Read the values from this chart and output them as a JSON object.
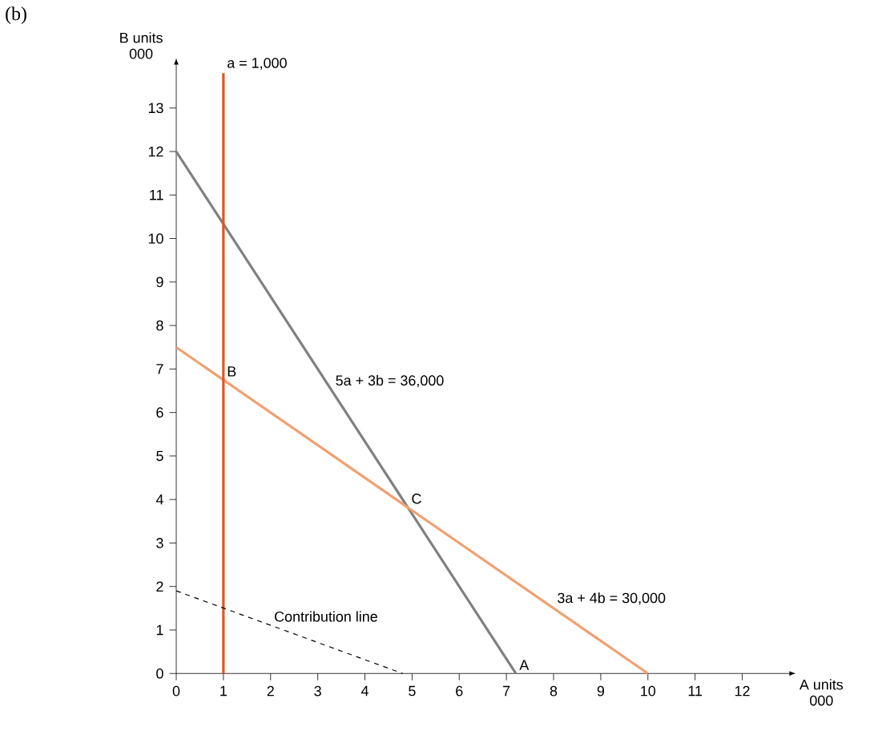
{
  "chart_data": {
    "type": "line",
    "title": "(b)",
    "xlabel": "A units 000",
    "ylabel": "B units 000",
    "xlim": [
      0,
      13
    ],
    "ylim": [
      0,
      14
    ],
    "xticks": [
      0,
      1,
      2,
      3,
      4,
      5,
      6,
      7,
      8,
      9,
      10,
      11,
      12
    ],
    "yticks": [
      0,
      1,
      2,
      3,
      4,
      5,
      6,
      7,
      8,
      9,
      10,
      11,
      12,
      13
    ],
    "grid": false,
    "series": [
      {
        "color": "#808080",
        "x": [
          0,
          7.2
        ],
        "values": [
          12,
          0
        ],
        "line_style": "solid"
      },
      {
        "color": "#f0a070",
        "x": [
          0,
          10
        ],
        "values": [
          7.5,
          0
        ],
        "line_style": "solid"
      },
      {
        "color": "#e8541c",
        "x": [
          1,
          1
        ],
        "values": [
          0,
          13.8
        ],
        "line_style": "solid"
      },
      {
        "color": "#000000",
        "x": [
          0,
          4.8
        ],
        "values": [
          1.9,
          0
        ],
        "line_style": "dashed"
      }
    ],
    "annotations": [
      {
        "text": "a = 1,000",
        "x": 1,
        "y": 13.8
      },
      {
        "text": "B",
        "x": 1,
        "y": 6.75
      },
      {
        "text": "5a + 3b = 36,000",
        "x": 3.3,
        "y": 6.5
      },
      {
        "text": "C",
        "x": 4.91,
        "y": 3.82
      },
      {
        "text": "3a + 4b = 30,000",
        "x": 8,
        "y": 1.5
      },
      {
        "text": "Contribution line",
        "x": 2,
        "y": 1.11
      },
      {
        "text": "A",
        "x": 7.2,
        "y": 0
      }
    ]
  }
}
